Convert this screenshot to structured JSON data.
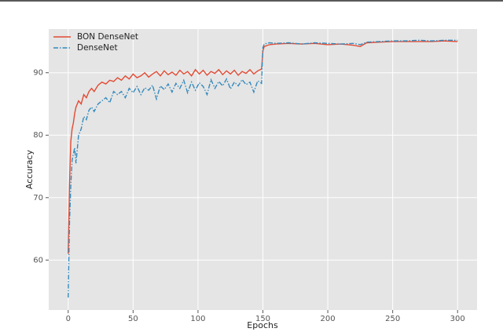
{
  "chart_data": {
    "type": "line",
    "x_label": "Epochs",
    "y_label": "Accuracy",
    "x": [
      0,
      1,
      2,
      3,
      4,
      5,
      6,
      8,
      10,
      12,
      14,
      16,
      18,
      20,
      23,
      26,
      29,
      32,
      35,
      38,
      41,
      44,
      47,
      50,
      53,
      56,
      59,
      62,
      65,
      68,
      71,
      74,
      77,
      80,
      83,
      86,
      89,
      92,
      95,
      98,
      101,
      104,
      107,
      110,
      113,
      116,
      119,
      122,
      125,
      128,
      131,
      134,
      137,
      140,
      143,
      146,
      149,
      150,
      151,
      155,
      160,
      170,
      180,
      190,
      200,
      210,
      220,
      225,
      230,
      240,
      250,
      260,
      270,
      280,
      290,
      300
    ],
    "series": [
      {
        "name": "BON DenseNet",
        "color": "#e24a33",
        "linestyle": "solid",
        "values": [
          61,
          72,
          79,
          81,
          82,
          83.5,
          84.5,
          85.5,
          85,
          86.5,
          86,
          87,
          87.5,
          87,
          88,
          88.5,
          88.2,
          88.8,
          88.6,
          89.2,
          88.8,
          89.5,
          89,
          89.8,
          89.2,
          89.5,
          90,
          89.3,
          89.8,
          90.2,
          89.5,
          90.3,
          89.7,
          90.1,
          89.6,
          90.4,
          89.8,
          90.2,
          89.5,
          90.5,
          89.8,
          90.4,
          89.6,
          90.2,
          89.9,
          90.5,
          89.7,
          90.3,
          89.8,
          90.4,
          89.6,
          90.2,
          89.9,
          90.5,
          89.8,
          90.3,
          90.6,
          93.5,
          94.2,
          94.5,
          94.6,
          94.7,
          94.6,
          94.7,
          94.5,
          94.6,
          94.4,
          94.2,
          94.8,
          94.9,
          95,
          95,
          95,
          95,
          95.1,
          95
        ]
      },
      {
        "name": "DenseNet",
        "color": "#348abd",
        "linestyle": "dashdot",
        "values": [
          54,
          66,
          72,
          76,
          77,
          78,
          75.5,
          80,
          81,
          83,
          82.5,
          84,
          84.5,
          83.8,
          85,
          85.5,
          86,
          85.2,
          87,
          86.5,
          87,
          86,
          87.5,
          86.8,
          87.8,
          86.5,
          87.6,
          87.2,
          88,
          85.8,
          87.9,
          87.3,
          88.2,
          86.9,
          88.3,
          87.5,
          88.8,
          86.8,
          88.5,
          87.2,
          88.4,
          87.8,
          86.5,
          88.9,
          87.5,
          88.6,
          87.9,
          89,
          87.4,
          88.5,
          87.9,
          88.9,
          88.1,
          88.5,
          86.9,
          88.7,
          88.3,
          94,
          94.6,
          94.8,
          94.7,
          94.8,
          94.6,
          94.8,
          94.7,
          94.6,
          94.7,
          94.5,
          94.9,
          95,
          95.1,
          95.1,
          95.2,
          95.1,
          95.2,
          95.2
        ]
      }
    ],
    "xlim": [
      -15,
      315
    ],
    "ylim": [
      52,
      97
    ],
    "xticks": [
      0,
      50,
      100,
      150,
      200,
      250,
      300
    ],
    "yticks": [
      60,
      70,
      80,
      90
    ],
    "grid": true,
    "legend": "upper left"
  }
}
